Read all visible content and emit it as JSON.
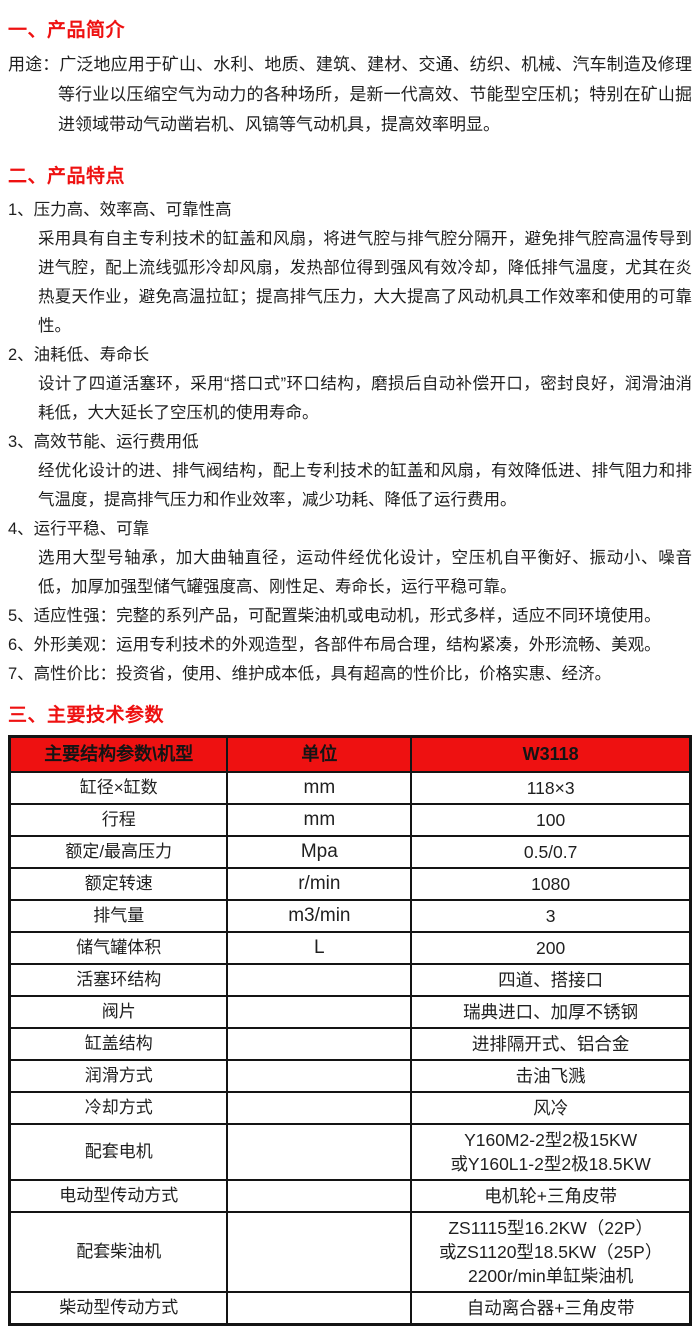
{
  "colors": {
    "accent_red": "#ee1111",
    "table_header_bg": "#ee1111",
    "table_header_text": "#141414",
    "border": "#141414",
    "body_text": "#1f1f1f"
  },
  "intro": {
    "heading": "一、产品简介",
    "label": "用途：",
    "body": "广泛地应用于矿山、水利、地质、建筑、建材、交通、纺织、机械、汽车制造及修理等行业以压缩空气为动力的各种场所，是新一代高效、节能型空压机；特别在矿山掘进领域带动气动凿岩机、风镐等气动机具，提高效率明显。"
  },
  "features": {
    "heading": "二、产品特点",
    "items": [
      {
        "title": "1、压力高、效率高、可靠性高",
        "body": "采用具有自主专利技术的缸盖和风扇，将进气腔与排气腔分隔开，避免排气腔高温传导到进气腔，配上流线弧形冷却风扇，发热部位得到强风有效冷却，降低排气温度，尤其在炎热夏天作业，避免高温拉缸；提高排气压力，大大提高了风动机具工作效率和使用的可靠性。"
      },
      {
        "title": "2、油耗低、寿命长",
        "body": "设计了四道活塞环，采用“搭口式”环口结构，磨损后自动补偿开口，密封良好，润滑油消耗低，大大延长了空压机的使用寿命。"
      },
      {
        "title": "3、高效节能、运行费用低",
        "body": "经优化设计的进、排气阀结构，配上专利技术的缸盖和风扇，有效降低进、排气阻力和排气温度，提高排气压力和作业效率，减少功耗、降低了运行费用。"
      },
      {
        "title": "4、运行平稳、可靠",
        "body": "选用大型号轴承，加大曲轴直径，运动件经优化设计，空压机自平衡好、振动小、噪音低，加厚加强型储气罐强度高、刚性足、寿命长，运行平稳可靠。"
      },
      {
        "title": "5、适应性强：完整的系列产品，可配置柴油机或电动机，形式多样，适应不同环境使用。",
        "body": ""
      },
      {
        "title": "6、外形美观：运用专利技术的外观造型，各部件布局合理，结构紧凑，外形流畅、美观。",
        "body": ""
      },
      {
        "title": "7、高性价比：投资省，使用、维护成本低，具有超高的性价比，价格实惠、经济。",
        "body": ""
      }
    ]
  },
  "specs": {
    "heading": "三、主要技术参数",
    "table": {
      "headers": [
        "主要结构参数\\机型",
        "单位",
        "W3118"
      ],
      "rows": [
        [
          "缸径×缸数",
          "mm",
          "118×3"
        ],
        [
          "行程",
          "mm",
          "100"
        ],
        [
          "额定/最高压力",
          "Mpa",
          "0.5/0.7"
        ],
        [
          "额定转速",
          "r/min",
          "1080"
        ],
        [
          "排气量",
          "m3/min",
          "3"
        ],
        [
          "储气罐体积",
          "L",
          "200"
        ],
        [
          "活塞环结构",
          "",
          "四道、搭接口"
        ],
        [
          "阀片",
          "",
          "瑞典进口、加厚不锈钢"
        ],
        [
          "缸盖结构",
          "",
          "进排隔开式、铝合金"
        ],
        [
          "润滑方式",
          "",
          "击油飞溅"
        ],
        [
          "冷却方式",
          "",
          "风冷"
        ],
        [
          "配套电机",
          "",
          "Y160M2-2型2极15KW\n或Y160L1-2型2极18.5KW"
        ],
        [
          "电动型传动方式",
          "",
          "电机轮+三角皮带"
        ],
        [
          "配套柴油机",
          "",
          "ZS1115型16.2KW（22P）\n或ZS1120型18.5KW（25P）\n2200r/min单缸柴油机"
        ],
        [
          "柴动型传动方式",
          "",
          "自动离合器+三角皮带"
        ]
      ]
    }
  }
}
